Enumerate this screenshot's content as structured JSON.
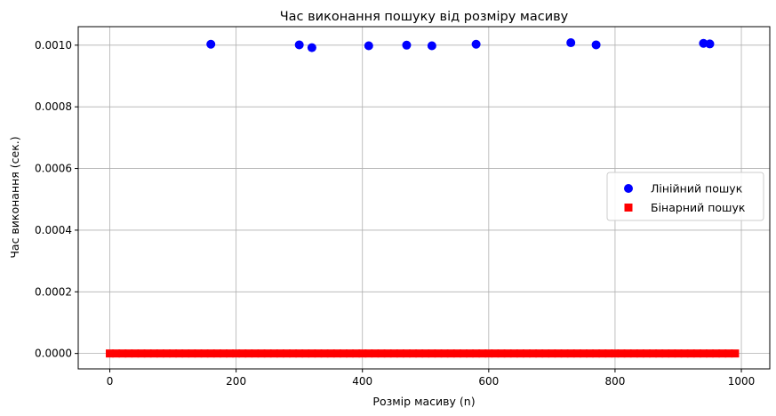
{
  "chart_data": {
    "type": "scatter",
    "title": "Час виконання пошуку від розміру масиву",
    "xlabel": "Розмір масиву (n)",
    "ylabel": "Час виконання (сек.)",
    "xlim": [
      -50,
      1045
    ],
    "ylim": [
      -5e-05,
      0.00106
    ],
    "xticks": [
      0,
      200,
      400,
      600,
      800,
      1000
    ],
    "xtick_labels": [
      "0",
      "200",
      "400",
      "600",
      "800",
      "1000"
    ],
    "yticks": [
      0.0,
      0.0002,
      0.0004,
      0.0006,
      0.0008,
      0.001
    ],
    "ytick_labels": [
      "0.0000",
      "0.0002",
      "0.0004",
      "0.0006",
      "0.0008",
      "0.0010"
    ],
    "grid": true,
    "legend_position": "center-right",
    "series": [
      {
        "name": "Лінійний пошук",
        "marker": "circle",
        "color": "#0000ff",
        "x": [
          160,
          300,
          320,
          410,
          470,
          510,
          580,
          730,
          770,
          940,
          950
        ],
        "y": [
          0.001003,
          0.001001,
          0.000992,
          0.000998,
          0.001,
          0.000998,
          0.001003,
          0.001008,
          0.001001,
          0.001006,
          0.001004
        ]
      },
      {
        "name": "Бінарний пошук",
        "marker": "square",
        "color": "#ff0000",
        "x_range": [
          0,
          990
        ],
        "x_step": 10,
        "y_value": 0.0
      }
    ]
  }
}
